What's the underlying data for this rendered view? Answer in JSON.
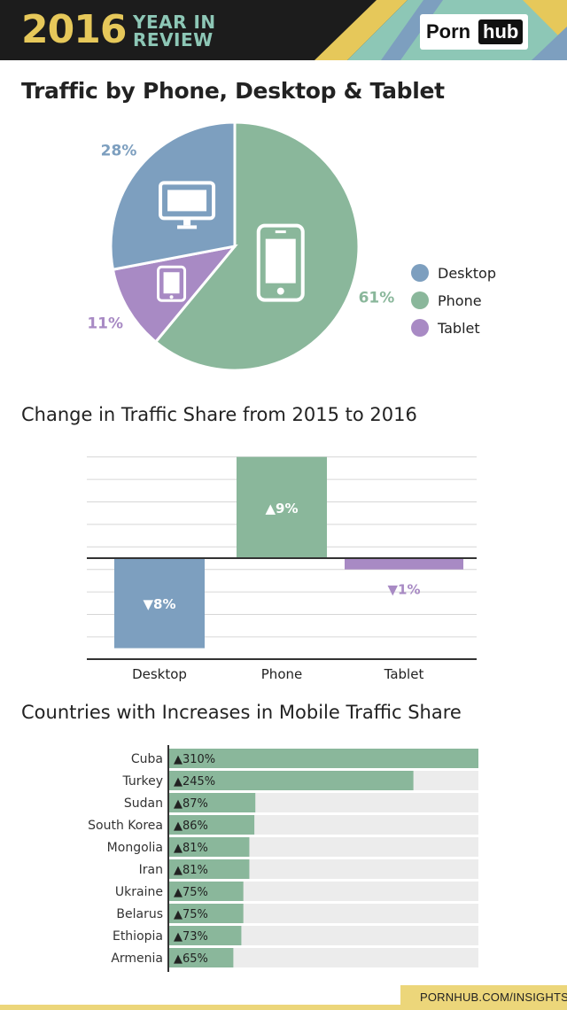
{
  "header": {
    "year": "2016",
    "subtitle_line1": "YEAR IN",
    "subtitle_line2": "REVIEW",
    "logo_part1": "Porn",
    "logo_part2": "hub",
    "colors": {
      "dark": "#1c1c1c",
      "yellow": "#e6c85a",
      "teal": "#8dc7b6",
      "blue": "#7d9fbf"
    }
  },
  "titles": {
    "pie": "Traffic by Phone, Desktop & Tablet",
    "bar": "Change in Traffic Share from 2015 to 2016",
    "countries": "Countries with Increases in Mobile Traffic Share"
  },
  "footer": {
    "link_text": "PORNHUB.COM/INSIGHTS"
  },
  "chart_data": [
    {
      "type": "pie",
      "title": "Traffic by Phone, Desktop & Tablet",
      "slices": [
        {
          "name": "Phone",
          "value": 61,
          "label": "61%",
          "color": "#8ab79b",
          "icon": "phone-icon"
        },
        {
          "name": "Tablet",
          "value": 11,
          "label": "11%",
          "color": "#a88ac4",
          "icon": "tablet-icon"
        },
        {
          "name": "Desktop",
          "value": 28,
          "label": "28%",
          "color": "#7d9fbf",
          "icon": "desktop-icon"
        }
      ],
      "legend": {
        "position": "right",
        "entries": [
          "Desktop",
          "Phone",
          "Tablet"
        ]
      }
    },
    {
      "type": "bar",
      "title": "Change in Traffic Share from 2015 to 2016",
      "categories": [
        "Desktop",
        "Phone",
        "Tablet"
      ],
      "values": [
        -8,
        9,
        -1
      ],
      "labels": [
        "▼8%",
        "▲9%",
        "▼1%"
      ],
      "colors": [
        "#7d9fbf",
        "#8ab79b",
        "#a88ac4"
      ],
      "ylim": [
        -9,
        9
      ],
      "grid": true
    },
    {
      "type": "bar",
      "orientation": "horizontal",
      "title": "Countries with Increases in Mobile Traffic Share",
      "categories": [
        "Cuba",
        "Turkey",
        "Sudan",
        "South Korea",
        "Mongolia",
        "Iran",
        "Ukraine",
        "Belarus",
        "Ethiopia",
        "Armenia"
      ],
      "values": [
        310,
        245,
        87,
        86,
        81,
        81,
        75,
        75,
        73,
        65
      ],
      "labels": [
        "▲310%",
        "▲245%",
        "▲87%",
        "▲86%",
        "▲81%",
        "▲81%",
        "▲75%",
        "▲75%",
        "▲73%",
        "▲65%"
      ],
      "unit": "%",
      "xlim": [
        0,
        310
      ],
      "color": "#8ab79b",
      "track_color": "#ececec"
    }
  ]
}
